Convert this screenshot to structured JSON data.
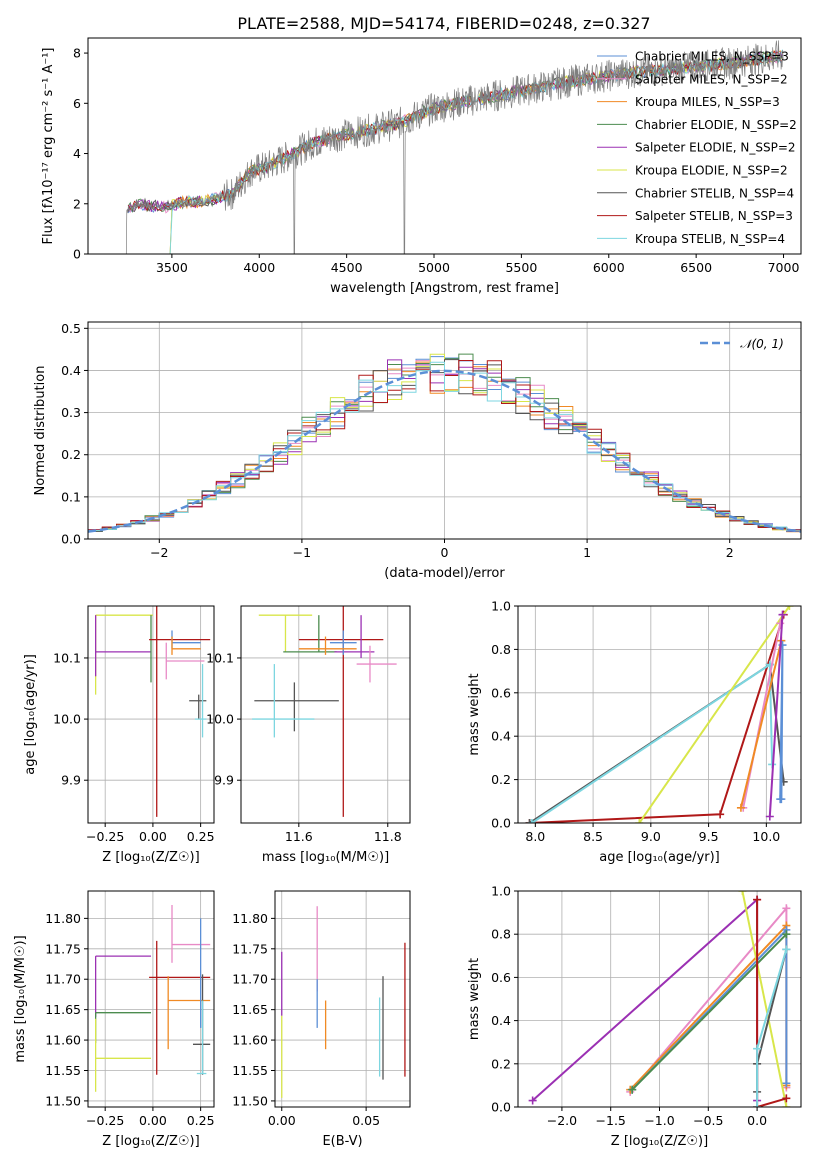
{
  "figure": {
    "title": "PLATE=2588, MJD=54174, FIBERID=0248, z=0.327"
  },
  "chart_data": [
    {
      "id": "spectrum",
      "type": "line",
      "xlabel": "wavelength [Angstrom, rest frame]",
      "ylabel": "Flux [fλ10⁻¹⁷ erg cm⁻² s⁻¹ A⁻¹]",
      "xlim": [
        3020,
        7100
      ],
      "ylim": [
        0,
        8.6
      ],
      "xticks": [
        3500,
        4000,
        4500,
        5000,
        5500,
        6000,
        6500,
        7000
      ],
      "yticks": [
        0,
        2,
        4,
        6,
        8
      ],
      "grid": false,
      "legend_position": "upper right",
      "observed_color": "#7f7f7f",
      "continuum": [
        [
          3230,
          1.7
        ],
        [
          3300,
          2.0
        ],
        [
          3450,
          1.85
        ],
        [
          3550,
          2.05
        ],
        [
          3700,
          2.1
        ],
        [
          3850,
          2.4
        ],
        [
          3950,
          3.3
        ],
        [
          4050,
          3.5
        ],
        [
          4200,
          4.0
        ],
        [
          4300,
          4.4
        ],
        [
          4450,
          4.7
        ],
        [
          4600,
          4.9
        ],
        [
          4800,
          5.2
        ],
        [
          5000,
          5.8
        ],
        [
          5200,
          6.1
        ],
        [
          5500,
          6.5
        ],
        [
          5800,
          6.9
        ],
        [
          6100,
          7.2
        ],
        [
          6400,
          7.4
        ],
        [
          6700,
          7.6
        ],
        [
          7000,
          7.9
        ]
      ],
      "series": [
        {
          "name": "Chabrier MILES, N_SSP=3",
          "color": "#5b8fd6"
        },
        {
          "name": "Salpeter MILES, N_SSP=2",
          "color": "#e88ac6"
        },
        {
          "name": "Kroupa MILES, N_SSP=3",
          "color": "#f08a24"
        },
        {
          "name": "Chabrier ELODIE, N_SSP=2",
          "color": "#4c8c4f"
        },
        {
          "name": "Salpeter ELODIE, N_SSP=2",
          "color": "#9b30b3"
        },
        {
          "name": "Kroupa ELODIE, N_SSP=2",
          "color": "#d8e64a"
        },
        {
          "name": "Chabrier STELIB, N_SSP=4",
          "color": "#555555"
        },
        {
          "name": "Salpeter STELIB, N_SSP=3",
          "color": "#b01818"
        },
        {
          "name": "Kroupa STELIB, N_SSP=4",
          "color": "#7dd6e0"
        }
      ]
    },
    {
      "id": "residuals",
      "type": "line",
      "xlabel": "(data-model)/error",
      "ylabel": "Normed distribution",
      "xlim": [
        -2.5,
        2.5
      ],
      "ylim": [
        0,
        0.515
      ],
      "xticks": [
        -2,
        -1,
        0,
        1,
        2
      ],
      "yticks": [
        0.0,
        0.1,
        0.2,
        0.3,
        0.4,
        0.5
      ],
      "grid": true,
      "legend_position": "upper right",
      "gaussian": {
        "name": "𝒩(0, 1)",
        "mean": 0,
        "sigma": 1,
        "color": "#5b8fd6"
      },
      "bin_width": 0.1
    },
    {
      "id": "age_vs_Z",
      "type": "scatter",
      "xlabel": "Z [log₁₀(Z/Z☉)]",
      "ylabel": "age  [log₁₀(age/yr)]",
      "xlim": [
        -0.34,
        0.32
      ],
      "ylim": [
        9.83,
        10.185
      ],
      "xticks": [
        -0.25,
        0.0,
        0.25
      ],
      "yticks": [
        9.9,
        10.0,
        10.1
      ],
      "grid": true,
      "points": [
        {
          "color": "#d8e64a",
          "x": -0.3,
          "xerr": [
            0.0,
            0.3
          ],
          "y": 10.17,
          "yerr": [
            0.13,
            0.0
          ]
        },
        {
          "color": "#9b30b3",
          "x": -0.3,
          "xerr": [
            0.0,
            0.29
          ],
          "y": 10.11,
          "yerr": [
            0.04,
            0.06
          ]
        },
        {
          "color": "#4c8c4f",
          "x": -0.01,
          "xerr": [
            0.0,
            0.0
          ],
          "y": 10.12,
          "yerr": [
            0.06,
            0.05
          ]
        },
        {
          "color": "#b01818",
          "x": 0.02,
          "xerr": [
            0.04,
            0.28
          ],
          "y": 10.13,
          "yerr": [
            0.29,
            0.06
          ]
        },
        {
          "color": "#5b8fd6",
          "x": 0.1,
          "xerr": [
            0.0,
            0.15
          ],
          "y": 10.125,
          "yerr": [
            0.01,
            0.02
          ]
        },
        {
          "color": "#f08a24",
          "x": 0.1,
          "xerr": [
            0.0,
            0.15
          ],
          "y": 10.115,
          "yerr": [
            0.01,
            0.02
          ]
        },
        {
          "color": "#e88ac6",
          "x": 0.07,
          "xerr": [
            0.0,
            0.2
          ],
          "y": 10.095,
          "yerr": [
            0.03,
            0.03
          ]
        },
        {
          "color": "#555555",
          "x": 0.24,
          "xerr": [
            0.05,
            0.04
          ],
          "y": 10.03,
          "yerr": [
            0.03,
            0.01
          ]
        },
        {
          "color": "#7dd6e0",
          "x": 0.26,
          "xerr": [
            0.04,
            0.02
          ],
          "y": 10.0,
          "yerr": [
            0.03,
            0.09
          ]
        }
      ]
    },
    {
      "id": "age_vs_mass",
      "type": "scatter",
      "xlabel": "mass [log₁₀(M/M☉)]",
      "xlim": [
        11.47,
        11.85
      ],
      "ylim": [
        9.83,
        10.185
      ],
      "xticks": [
        11.6,
        11.8
      ],
      "yticks": [
        9.9,
        10.0,
        10.1
      ],
      "grid": true,
      "points": [
        {
          "color": "#d8e64a",
          "x": 11.57,
          "xerr": [
            0.06,
            0.06
          ],
          "y": 10.17,
          "yerr": [
            0.06,
            0.0
          ]
        },
        {
          "color": "#b01818",
          "x": 11.7,
          "xerr": [
            0.1,
            0.09
          ],
          "y": 10.13,
          "yerr": [
            0.29,
            0.06
          ]
        },
        {
          "color": "#4c8c4f",
          "x": 11.645,
          "xerr": [
            0.08,
            0.04
          ],
          "y": 10.11,
          "yerr": [
            0.0,
            0.06
          ]
        },
        {
          "color": "#9b30b3",
          "x": 11.74,
          "xerr": [
            0.06,
            0.03
          ],
          "y": 10.11,
          "yerr": [
            0.01,
            0.06
          ]
        },
        {
          "color": "#5b8fd6",
          "x": 11.7,
          "xerr": [
            0.03,
            0.03
          ],
          "y": 10.125,
          "yerr": [
            0.02,
            0.02
          ]
        },
        {
          "color": "#e88ac6",
          "x": 11.76,
          "xerr": [
            0.03,
            0.06
          ],
          "y": 10.09,
          "yerr": [
            0.03,
            0.03
          ]
        },
        {
          "color": "#f08a24",
          "x": 11.66,
          "xerr": [
            0.06,
            0.07
          ],
          "y": 10.115,
          "yerr": [
            0.01,
            0.02
          ]
        },
        {
          "color": "#555555",
          "x": 11.59,
          "xerr": [
            0.09,
            0.1
          ],
          "y": 10.03,
          "yerr": [
            0.05,
            0.03
          ]
        },
        {
          "color": "#7dd6e0",
          "x": 11.545,
          "xerr": [
            0.05,
            0.09
          ],
          "y": 10.0,
          "yerr": [
            0.03,
            0.09
          ]
        }
      ]
    },
    {
      "id": "massweight_vs_age",
      "type": "line",
      "xlabel": "age  [log₁₀(age/yr)]",
      "ylabel": "mass weight",
      "xlim": [
        7.85,
        10.3
      ],
      "ylim": [
        0.0,
        1.0
      ],
      "xticks": [
        8.0,
        8.5,
        9.0,
        9.5,
        10.0
      ],
      "yticks": [
        0.0,
        0.2,
        0.4,
        0.6,
        0.8,
        1.0
      ],
      "grid": true,
      "series": [
        {
          "color": "#b01818",
          "x": [
            7.95,
            9.6,
            10.15
          ],
          "y": [
            0.0,
            0.04,
            0.96
          ]
        },
        {
          "color": "#555555",
          "x": [
            7.95,
            10.03,
            10.15
          ],
          "y": [
            0.0,
            0.73,
            0.19
          ]
        },
        {
          "color": "#7dd6e0",
          "x": [
            7.97,
            10.03,
            10.05
          ],
          "y": [
            0.0,
            0.73,
            0.27
          ]
        },
        {
          "color": "#d8e64a",
          "x": [
            8.9,
            10.2
          ],
          "y": [
            0.0,
            1.0
          ]
        },
        {
          "color": "#e88ac6",
          "x": [
            9.8,
            10.12
          ],
          "y": [
            0.07,
            0.92
          ]
        },
        {
          "color": "#f08a24",
          "x": [
            9.78,
            10.13
          ],
          "y": [
            0.07,
            0.84
          ]
        },
        {
          "color": "#5b8fd6",
          "x": [
            10.12,
            10.14,
            10.13
          ],
          "y": [
            0.11,
            0.82,
            0.11
          ]
        },
        {
          "color": "#9b30b3",
          "x": [
            10.03,
            10.14
          ],
          "y": [
            0.03,
            0.96
          ]
        }
      ]
    },
    {
      "id": "mass_vs_Z",
      "type": "scatter",
      "xlabel": "Z [log₁₀(Z/Z☉)]",
      "ylabel": "mass [log₁₀(M/M☉)]",
      "xlim": [
        -0.34,
        0.32
      ],
      "ylim": [
        11.49,
        11.845
      ],
      "xticks": [
        -0.25,
        0.0,
        0.25
      ],
      "yticks": [
        11.5,
        11.55,
        11.6,
        11.65,
        11.7,
        11.75,
        11.8
      ],
      "grid": true,
      "points": [
        {
          "color": "#9b30b3",
          "x": -0.3,
          "xerr": [
            0.0,
            0.29
          ],
          "y": 11.738,
          "yerr": [
            0.1,
            0.0
          ]
        },
        {
          "color": "#4c8c4f",
          "x": -0.3,
          "xerr": [
            0.0,
            0.29
          ],
          "y": 11.645,
          "yerr": [
            0.05,
            0.0
          ]
        },
        {
          "color": "#d8e64a",
          "x": -0.3,
          "xerr": [
            0.0,
            0.29
          ],
          "y": 11.57,
          "yerr": [
            0.055,
            0.065
          ]
        },
        {
          "color": "#b01818",
          "x": 0.02,
          "xerr": [
            0.04,
            0.28
          ],
          "y": 11.703,
          "yerr": [
            0.16,
            0.06
          ]
        },
        {
          "color": "#e88ac6",
          "x": 0.1,
          "xerr": [
            0.0,
            0.2
          ],
          "y": 11.757,
          "yerr": [
            0.03,
            0.065
          ]
        },
        {
          "color": "#f08a24",
          "x": 0.08,
          "xerr": [
            0.0,
            0.22
          ],
          "y": 11.665,
          "yerr": [
            0.08,
            0.04
          ]
        },
        {
          "color": "#5b8fd6",
          "x": 0.25,
          "xerr": [
            0.0,
            0.0
          ],
          "y": 11.7,
          "yerr": [
            0.08,
            0.1
          ]
        },
        {
          "color": "#555555",
          "x": 0.26,
          "xerr": [
            0.05,
            0.04
          ],
          "y": 11.593,
          "yerr": [
            0.05,
            0.115
          ]
        },
        {
          "color": "#7dd6e0",
          "x": 0.26,
          "xerr": [
            0.03,
            0.02
          ],
          "y": 11.545,
          "yerr": [
            0.0,
            0.12
          ]
        }
      ]
    },
    {
      "id": "mass_vs_ebv",
      "type": "scatter",
      "xlabel": "E(B-V)",
      "xlim": [
        -0.004,
        0.076
      ],
      "ylim": [
        11.49,
        11.845
      ],
      "xticks": [
        0.0,
        0.05
      ],
      "yticks": [
        11.5,
        11.55,
        11.6,
        11.65,
        11.7,
        11.75,
        11.8
      ],
      "grid": true,
      "points": [
        {
          "color": "#9b30b3",
          "x": 0.0,
          "y": 11.705,
          "yerr": [
            0.065,
            0.04
          ]
        },
        {
          "color": "#d8e64a",
          "x": 0.0,
          "y": 11.57,
          "yerr": [
            0.065,
            0.07
          ]
        },
        {
          "color": "#e88ac6",
          "x": 0.021,
          "y": 11.73,
          "yerr": [
            0.05,
            0.09
          ]
        },
        {
          "color": "#5b8fd6",
          "x": 0.021,
          "y": 11.66,
          "yerr": [
            0.04,
            0.04
          ]
        },
        {
          "color": "#f08a24",
          "x": 0.026,
          "y": 11.625,
          "yerr": [
            0.04,
            0.04
          ]
        },
        {
          "color": "#7dd6e0",
          "x": 0.058,
          "y": 11.6,
          "yerr": [
            0.06,
            0.07
          ]
        },
        {
          "color": "#555555",
          "x": 0.06,
          "y": 11.62,
          "yerr": [
            0.085,
            0.085
          ]
        },
        {
          "color": "#b01818",
          "x": 0.073,
          "y": 11.65,
          "yerr": [
            0.11,
            0.11
          ]
        }
      ]
    },
    {
      "id": "massweight_vs_Z",
      "type": "line",
      "xlabel": "Z [log₁₀(Z/Z☉)]",
      "ylabel": "mass weight",
      "xlim": [
        -2.45,
        0.45
      ],
      "ylim": [
        0.0,
        1.0
      ],
      "xticks": [
        -2.0,
        -1.5,
        -1.0,
        -0.5,
        0.0
      ],
      "yticks": [
        0.0,
        0.2,
        0.4,
        0.6,
        0.8,
        1.0
      ],
      "grid": true,
      "series": [
        {
          "color": "#9b30b3",
          "x": [
            -2.3,
            0.0,
            0.0
          ],
          "y": [
            0.03,
            0.96,
            0.03
          ]
        },
        {
          "color": "#e88ac6",
          "x": [
            -1.3,
            0.3,
            0.3
          ],
          "y": [
            0.07,
            0.92,
            0.09
          ]
        },
        {
          "color": "#f08a24",
          "x": [
            -1.3,
            0.3,
            0.3
          ],
          "y": [
            0.08,
            0.84,
            0.1
          ]
        },
        {
          "color": "#5b8fd6",
          "x": [
            -1.28,
            0.3,
            0.3
          ],
          "y": [
            0.08,
            0.82,
            0.11
          ]
        },
        {
          "color": "#4c8c4f",
          "x": [
            -1.28,
            0.3
          ],
          "y": [
            0.08,
            0.8
          ]
        },
        {
          "color": "#d8e64a",
          "x": [
            -0.15,
            0.3
          ],
          "y": [
            1.0,
            0.0
          ]
        },
        {
          "color": "#b01818",
          "x": [
            0.0,
            0.0,
            0.3
          ],
          "y": [
            0.96,
            0.0,
            0.04
          ]
        },
        {
          "color": "#555555",
          "x": [
            0.0,
            0.0,
            0.3
          ],
          "y": [
            0.07,
            0.2,
            0.73
          ]
        },
        {
          "color": "#7dd6e0",
          "x": [
            0.0,
            0.0,
            0.3
          ],
          "y": [
            0.0,
            0.27,
            0.73
          ]
        }
      ]
    }
  ]
}
